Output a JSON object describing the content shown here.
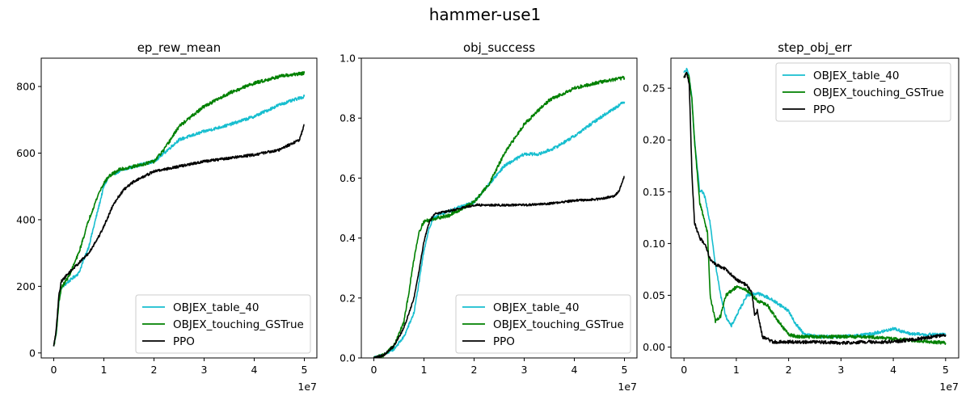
{
  "figure": {
    "title": "hammer-use1"
  },
  "colors": {
    "OBJEX_table_40": "#17becf",
    "OBJEX_touching_GSTrue": "#008000",
    "PPO": "#000000"
  },
  "chart_data": [
    {
      "type": "line",
      "title": "ep_rew_mean",
      "xlabel": "",
      "ylabel": "",
      "x_multiplier_label": "1e7",
      "xlim": [
        -0.25,
        5.25
      ],
      "ylim": [
        -15,
        885
      ],
      "xticks": [
        0,
        1,
        2,
        3,
        4,
        5
      ],
      "yticks": [
        0,
        200,
        400,
        600,
        800
      ],
      "legend_position": "lower-right",
      "series": [
        {
          "name": "OBJEX_table_40",
          "x": [
            0,
            0.05,
            0.1,
            0.15,
            0.3,
            0.5,
            0.7,
            0.9,
            1.0,
            1.1,
            1.3,
            1.6,
            2.0,
            2.2,
            2.5,
            3.0,
            3.5,
            4.0,
            4.5,
            5.0
          ],
          "y": [
            20,
            60,
            150,
            195,
            215,
            240,
            320,
            440,
            500,
            530,
            545,
            560,
            575,
            600,
            640,
            665,
            685,
            710,
            745,
            770
          ]
        },
        {
          "name": "OBJEX_touching_GSTrue",
          "x": [
            0,
            0.05,
            0.1,
            0.15,
            0.3,
            0.5,
            0.7,
            0.9,
            1.0,
            1.1,
            1.3,
            1.6,
            2.0,
            2.2,
            2.5,
            3.0,
            3.5,
            4.0,
            4.5,
            5.0
          ],
          "y": [
            20,
            60,
            150,
            195,
            230,
            300,
            400,
            480,
            510,
            530,
            550,
            560,
            575,
            610,
            680,
            740,
            780,
            810,
            830,
            840
          ]
        },
        {
          "name": "PPO",
          "x": [
            0,
            0.05,
            0.1,
            0.15,
            0.3,
            0.5,
            0.7,
            0.9,
            1.0,
            1.2,
            1.4,
            1.6,
            1.8,
            2.0,
            2.5,
            3.0,
            3.5,
            4.0,
            4.5,
            4.9,
            5.0
          ],
          "y": [
            20,
            70,
            170,
            215,
            240,
            270,
            300,
            350,
            380,
            450,
            490,
            515,
            530,
            545,
            560,
            575,
            585,
            595,
            610,
            640,
            685
          ]
        }
      ]
    },
    {
      "type": "line",
      "title": "obj_success",
      "xlabel": "",
      "ylabel": "",
      "x_multiplier_label": "1e7",
      "xlim": [
        -0.25,
        5.25
      ],
      "ylim": [
        0.0,
        1.0
      ],
      "xticks": [
        0,
        1,
        2,
        3,
        4,
        5
      ],
      "yticks": [
        0.0,
        0.2,
        0.4,
        0.6,
        0.8,
        1.0
      ],
      "legend_position": "lower-right",
      "series": [
        {
          "name": "OBJEX_table_40",
          "x": [
            0,
            0.2,
            0.4,
            0.6,
            0.8,
            0.9,
            1.0,
            1.1,
            1.2,
            1.5,
            2.0,
            2.3,
            2.6,
            3.0,
            3.3,
            3.6,
            4.0,
            4.5,
            5.0
          ],
          "y": [
            0,
            0.01,
            0.03,
            0.07,
            0.15,
            0.25,
            0.36,
            0.43,
            0.47,
            0.49,
            0.52,
            0.58,
            0.64,
            0.68,
            0.68,
            0.7,
            0.74,
            0.8,
            0.855
          ]
        },
        {
          "name": "OBJEX_touching_GSTrue",
          "x": [
            0,
            0.2,
            0.4,
            0.6,
            0.7,
            0.8,
            0.9,
            1.0,
            1.2,
            1.5,
            2.0,
            2.3,
            2.6,
            3.0,
            3.5,
            4.0,
            4.5,
            5.0
          ],
          "y": [
            0,
            0.01,
            0.04,
            0.12,
            0.22,
            0.33,
            0.42,
            0.455,
            0.465,
            0.475,
            0.52,
            0.58,
            0.68,
            0.78,
            0.86,
            0.9,
            0.92,
            0.935
          ]
        },
        {
          "name": "PPO",
          "x": [
            0,
            0.2,
            0.4,
            0.6,
            0.8,
            0.9,
            1.0,
            1.1,
            1.2,
            1.5,
            2.0,
            2.5,
            3.0,
            3.5,
            4.0,
            4.5,
            4.8,
            4.9,
            5.0
          ],
          "y": [
            0,
            0.01,
            0.04,
            0.1,
            0.2,
            0.29,
            0.39,
            0.45,
            0.48,
            0.49,
            0.51,
            0.51,
            0.51,
            0.515,
            0.525,
            0.53,
            0.54,
            0.56,
            0.605
          ]
        }
      ]
    },
    {
      "type": "line",
      "title": "step_obj_err",
      "xlabel": "",
      "ylabel": "",
      "x_multiplier_label": "1e7",
      "xlim": [
        -0.25,
        5.25
      ],
      "ylim": [
        -0.0105,
        0.279
      ],
      "xticks": [
        0,
        1,
        2,
        3,
        4,
        5
      ],
      "yticks": [
        0.0,
        0.05,
        0.1,
        0.15,
        0.2,
        0.25
      ],
      "legend_position": "top-right",
      "series": [
        {
          "name": "OBJEX_table_40",
          "x": [
            0,
            0.05,
            0.1,
            0.15,
            0.2,
            0.3,
            0.35,
            0.4,
            0.5,
            0.6,
            0.7,
            0.8,
            0.9,
            1.0,
            1.2,
            1.4,
            1.6,
            1.8,
            2.0,
            2.1,
            2.3,
            2.6,
            3.0,
            3.5,
            3.8,
            4.0,
            4.3,
            4.6,
            5.0
          ],
          "y": [
            0.265,
            0.268,
            0.262,
            0.24,
            0.2,
            0.15,
            0.15,
            0.145,
            0.12,
            0.08,
            0.05,
            0.03,
            0.02,
            0.03,
            0.05,
            0.052,
            0.048,
            0.042,
            0.035,
            0.025,
            0.012,
            0.01,
            0.01,
            0.012,
            0.015,
            0.018,
            0.013,
            0.012,
            0.012
          ]
        },
        {
          "name": "OBJEX_touching_GSTrue",
          "x": [
            0,
            0.05,
            0.1,
            0.15,
            0.2,
            0.3,
            0.4,
            0.45,
            0.5,
            0.6,
            0.7,
            0.8,
            1.0,
            1.2,
            1.4,
            1.6,
            1.8,
            2.0,
            2.2,
            2.5,
            3.0,
            3.5,
            4.0,
            4.5,
            5.0
          ],
          "y": [
            0.26,
            0.265,
            0.26,
            0.24,
            0.2,
            0.14,
            0.12,
            0.11,
            0.05,
            0.025,
            0.03,
            0.05,
            0.058,
            0.055,
            0.045,
            0.04,
            0.025,
            0.012,
            0.01,
            0.01,
            0.01,
            0.01,
            0.008,
            0.006,
            0.004
          ]
        },
        {
          "name": "PPO",
          "x": [
            0,
            0.05,
            0.1,
            0.15,
            0.2,
            0.3,
            0.4,
            0.5,
            0.6,
            0.8,
            1.0,
            1.2,
            1.3,
            1.35,
            1.4,
            1.5,
            1.7,
            2.0,
            2.5,
            3.0,
            3.5,
            4.0,
            4.5,
            5.0
          ],
          "y": [
            0.26,
            0.265,
            0.255,
            0.17,
            0.12,
            0.105,
            0.1,
            0.085,
            0.08,
            0.075,
            0.065,
            0.06,
            0.052,
            0.03,
            0.035,
            0.01,
            0.005,
            0.005,
            0.005,
            0.004,
            0.005,
            0.005,
            0.008,
            0.012
          ]
        }
      ]
    }
  ]
}
